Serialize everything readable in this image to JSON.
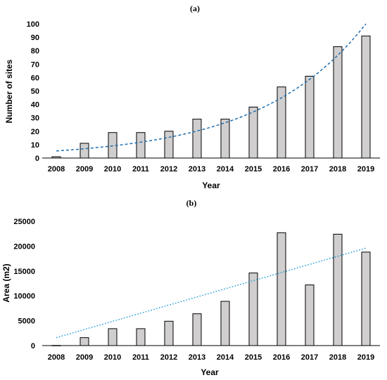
{
  "chart_data": [
    {
      "type": "bar",
      "panel_label": "(a)",
      "xlabel": "Year",
      "ylabel": "Number of sites",
      "categories": [
        "2008",
        "2009",
        "2010",
        "2011",
        "2012",
        "2013",
        "2014",
        "2015",
        "2016",
        "2017",
        "2018",
        "2019"
      ],
      "values": [
        1,
        11,
        19,
        19,
        20,
        29,
        29,
        38,
        53,
        61,
        83,
        91
      ],
      "ylim": [
        0,
        100
      ],
      "yticks": [
        0,
        10,
        20,
        30,
        40,
        50,
        60,
        70,
        80,
        90,
        100
      ],
      "bar_color": "#d0cece",
      "trendline": {
        "type": "exponential",
        "style": "dashed",
        "color": "#1f6fb2",
        "start": 5.3,
        "end": 100
      }
    },
    {
      "type": "bar",
      "panel_label": "(b)",
      "xlabel": "Year",
      "ylabel": "Area (m2)",
      "categories": [
        "2008",
        "2009",
        "2010",
        "2011",
        "2012",
        "2013",
        "2014",
        "2015",
        "2016",
        "2017",
        "2018",
        "2019"
      ],
      "values": [
        30,
        1600,
        3400,
        3400,
        4900,
        6400,
        8900,
        14600,
        22700,
        12200,
        22400,
        18800
      ],
      "ylim": [
        0,
        25000
      ],
      "yticks": [
        0,
        5000,
        10000,
        15000,
        20000,
        25000
      ],
      "bar_color": "#d0cece",
      "trendline": {
        "type": "linear",
        "style": "dotted",
        "color": "#1a9ad6",
        "start": 1600,
        "end": 19600
      }
    }
  ]
}
